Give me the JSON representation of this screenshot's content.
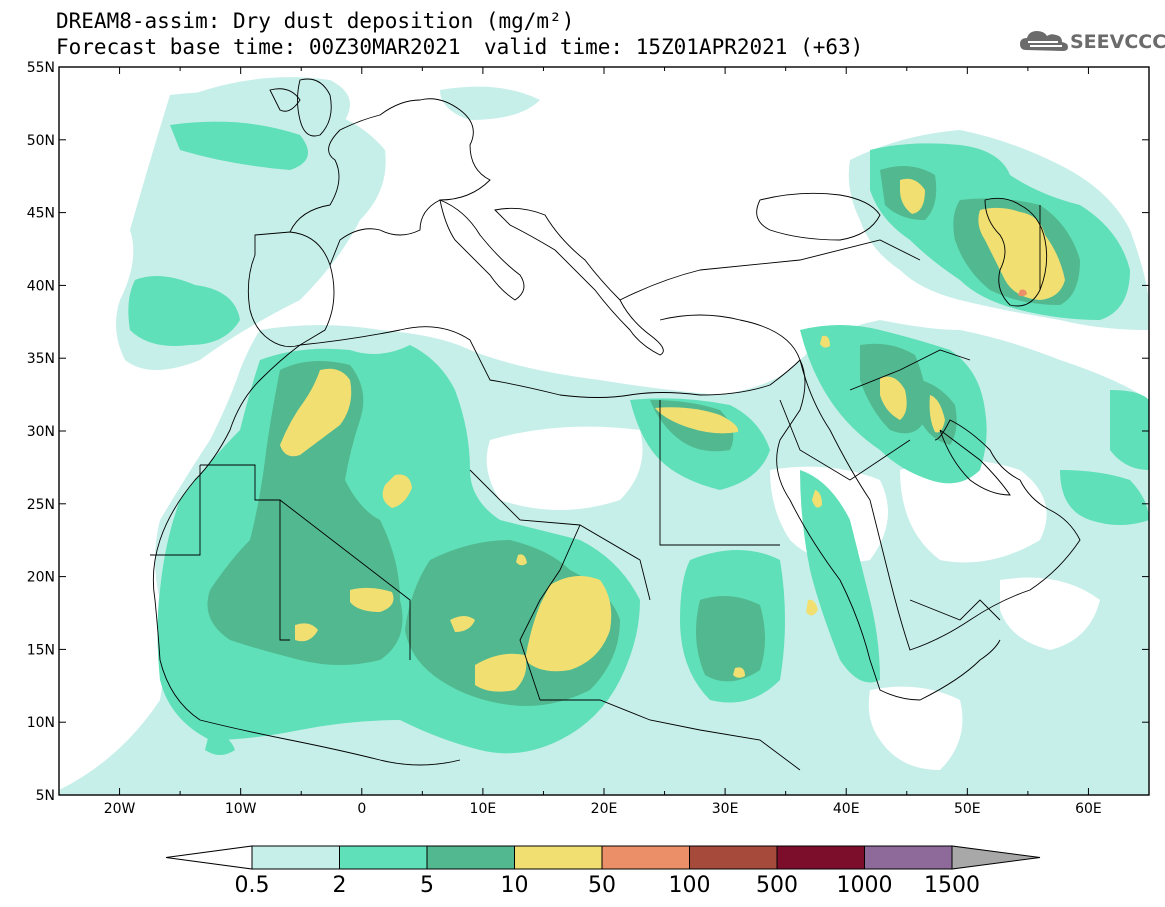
{
  "header": {
    "title_line1": "DREAM8-assim: Dry dust deposition (mg/m²)",
    "title_line2": "Forecast base time: 00Z30MAR2021",
    "valid_time": "valid time: 15Z01APR2021 (+63)",
    "logo_text": "SEEVCCC",
    "logo_icon": "cloud-icon"
  },
  "map": {
    "lon_labels": [
      "20W",
      "10W",
      "0",
      "10E",
      "20E",
      "30E",
      "40E",
      "50E",
      "60E"
    ],
    "lat_labels": [
      "55N",
      "50N",
      "45N",
      "40N",
      "35N",
      "30N",
      "25N",
      "20N",
      "15N",
      "10N",
      "5N"
    ]
  },
  "colorbar": {
    "labels": [
      "0.5",
      "2",
      "5",
      "10",
      "50",
      "100",
      "500",
      "1000",
      "1500"
    ],
    "colors": [
      "#c6efe9",
      "#5fe0b8",
      "#52b88f",
      "#f1df72",
      "#ea8f68",
      "#a64a3c",
      "#7c0d2b",
      "#8e6a9a",
      "#a8a8a8"
    ],
    "under_color": "#ffffff",
    "over_color": "#a8a8a8"
  },
  "palette": {
    "level1": "#c6efe9",
    "level2": "#5fe0b8",
    "level3": "#52b88f",
    "level4": "#f1df72",
    "level5": "#ea8f68"
  }
}
